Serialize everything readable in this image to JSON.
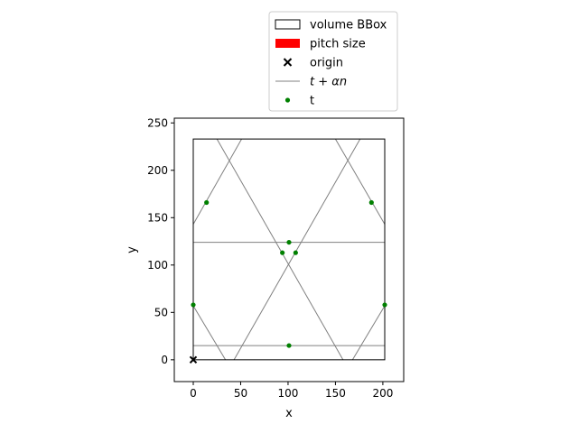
{
  "chart_data": {
    "type": "scatter",
    "xlabel": "x",
    "ylabel": "y",
    "xlim": [
      -20,
      222
    ],
    "ylim": [
      -23,
      255
    ],
    "xticks": [
      0,
      50,
      100,
      150,
      200
    ],
    "yticks": [
      0,
      50,
      100,
      150,
      200,
      250
    ],
    "grid": false,
    "legend_position": "upper center, above axes",
    "bbox": {
      "x0": 0,
      "y0": 0,
      "x1": 202,
      "y1": 233
    },
    "origin": {
      "x": 0,
      "y": 0
    },
    "lines": [
      {
        "p1": [
          0,
          15
        ],
        "p2": [
          202,
          15
        ]
      },
      {
        "p1": [
          0,
          124
        ],
        "p2": [
          202,
          124
        ]
      },
      {
        "p1": [
          0,
          143
        ],
        "p2": [
          51,
          233
        ]
      },
      {
        "p1": [
          0,
          57
        ],
        "p2": [
          34,
          0
        ]
      },
      {
        "p1": [
          25,
          233
        ],
        "p2": [
          158,
          0
        ]
      },
      {
        "p1": [
          43,
          0
        ],
        "p2": [
          176,
          233
        ]
      },
      {
        "p1": [
          150,
          233
        ],
        "p2": [
          202,
          143
        ]
      },
      {
        "p1": [
          168,
          0
        ],
        "p2": [
          202,
          57
        ]
      }
    ],
    "points": [
      {
        "x": 101,
        "y": 15
      },
      {
        "x": 101,
        "y": 124
      },
      {
        "x": 94,
        "y": 113
      },
      {
        "x": 108,
        "y": 113
      },
      {
        "x": 14,
        "y": 166
      },
      {
        "x": 188,
        "y": 166
      },
      {
        "x": 0,
        "y": 58
      },
      {
        "x": 202,
        "y": 58
      }
    ],
    "legend": [
      {
        "label": "volume BBox",
        "kind": "rect-outline",
        "color": "#000000"
      },
      {
        "label": "pitch size",
        "kind": "rect-fill",
        "color": "#ff0000"
      },
      {
        "label": "origin",
        "kind": "x-marker",
        "color": "#000000"
      },
      {
        "label": "t + αn",
        "kind": "line",
        "color": "#808080"
      },
      {
        "label": "t",
        "kind": "dot",
        "color": "#008000"
      }
    ],
    "colors": {
      "bbox": "#000000",
      "lines": "#808080",
      "points": "#008000",
      "origin": "#000000"
    }
  }
}
